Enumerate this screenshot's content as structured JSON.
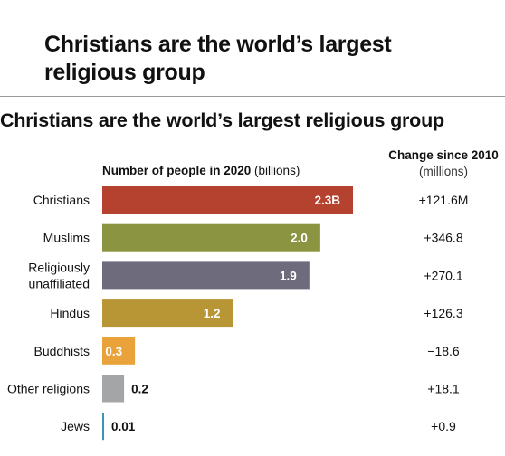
{
  "page": {
    "heading": "Christians are the world’s largest religious group"
  },
  "chart_data": {
    "type": "bar",
    "title": "Christians are the world’s largest religious group",
    "value_header": {
      "bold": "Number of people in 2020",
      "normal": " (billions)"
    },
    "change_header": {
      "bold": "Change since 2010",
      "normal": "(millions)"
    },
    "categories": [
      "Christians",
      "Muslims",
      "Religiously unaffiliated",
      "Hindus",
      "Buddhists",
      "Other religions",
      "Jews"
    ],
    "category_lines": [
      [
        "Christians"
      ],
      [
        "Muslims"
      ],
      [
        "Religiously",
        "unaffiliated"
      ],
      [
        "Hindus"
      ],
      [
        "Buddhists"
      ],
      [
        "Other religions"
      ],
      [
        "Jews"
      ]
    ],
    "values": [
      2.3,
      2.0,
      1.9,
      1.2,
      0.3,
      0.2,
      0.01
    ],
    "value_labels": [
      "2.3B",
      "2.0",
      "1.9",
      "1.2",
      "0.3",
      "0.2",
      "0.01"
    ],
    "changes": [
      "+121.6M",
      "+346.8",
      "+270.1",
      "+126.3",
      "−18.6",
      "+18.1",
      "+0.9"
    ],
    "colors": [
      "#b5412f",
      "#8b9440",
      "#6e6b7c",
      "#b89635",
      "#e9a33a",
      "#a3a5a7",
      "#3a93b8"
    ],
    "label_colors": [
      "#ffffff",
      "#ffffff",
      "#ffffff",
      "#ffffff",
      "#ffffff",
      "#111111",
      "#111111"
    ],
    "xlim": [
      0,
      2.3
    ]
  }
}
